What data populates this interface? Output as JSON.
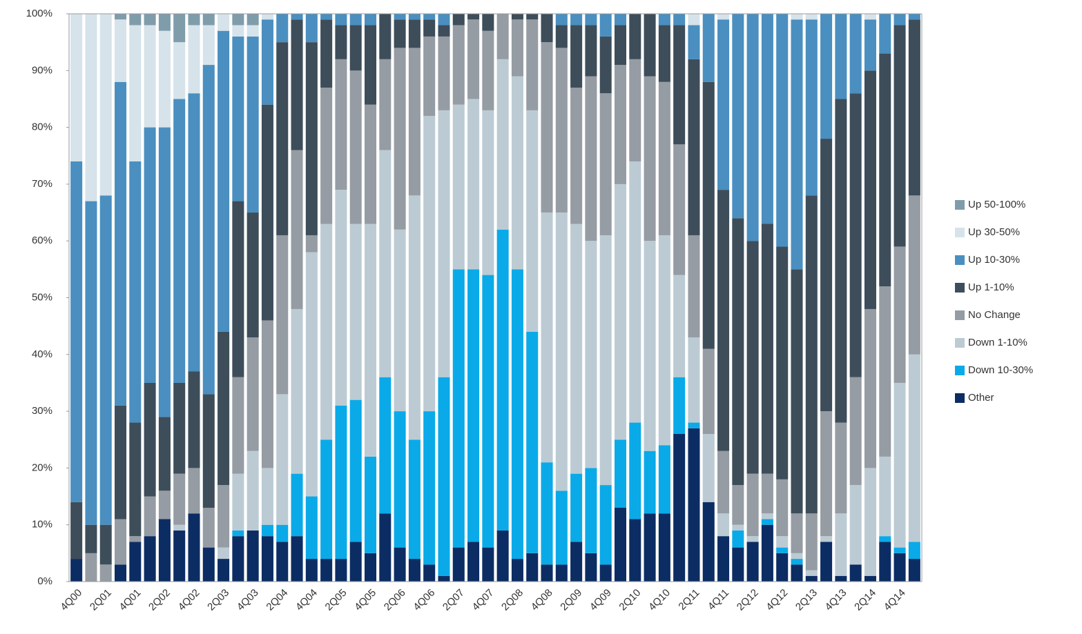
{
  "chart_data": {
    "type": "stacked_bar",
    "categories": [
      "4Q00",
      null,
      "2Q01",
      null,
      "4Q01",
      null,
      "2Q02",
      null,
      "4Q02",
      null,
      "2Q03",
      null,
      "4Q03",
      null,
      "2Q04",
      null,
      "4Q04",
      null,
      "2Q05",
      null,
      "4Q05",
      null,
      "2Q06",
      null,
      "4Q06",
      null,
      "2Q07",
      null,
      "4Q07",
      null,
      "2Q08",
      null,
      "4Q08",
      null,
      "2Q09",
      null,
      "4Q09",
      null,
      "2Q10",
      null,
      "4Q10",
      null,
      "2Q11",
      null,
      "4Q11",
      null,
      "2Q12",
      null,
      "4Q12",
      null,
      "2Q13",
      null,
      "4Q13",
      null,
      "2Q14",
      null,
      "4Q14",
      null
    ],
    "series": [
      {
        "name": "Other",
        "color": "#0c2d63",
        "values": [
          4,
          0,
          0,
          3,
          7,
          8,
          11,
          9,
          12,
          6,
          4,
          8,
          9,
          8,
          7,
          8,
          4,
          4,
          4,
          7,
          5,
          12,
          6,
          4,
          3,
          1,
          6,
          7,
          6,
          9,
          4,
          5,
          3,
          3,
          7,
          5,
          3,
          13,
          11,
          12,
          12,
          26,
          27,
          14,
          8,
          6,
          7,
          10,
          5,
          3,
          1,
          7,
          1,
          3,
          1,
          7,
          5,
          4
        ]
      },
      {
        "name": "Down 10-30%",
        "color": "#0aaae8",
        "values": [
          0,
          0,
          0,
          0,
          0,
          0,
          0,
          0,
          0,
          0,
          0,
          1,
          0,
          2,
          3,
          11,
          11,
          21,
          27,
          25,
          17,
          24,
          24,
          21,
          27,
          35,
          49,
          48,
          48,
          53,
          51,
          39,
          18,
          13,
          12,
          15,
          14,
          12,
          17,
          11,
          12,
          10,
          1,
          0,
          0,
          3,
          0,
          1,
          1,
          1,
          0,
          0,
          0,
          0,
          0,
          1,
          1,
          3
        ]
      },
      {
        "name": "Down 1-10%",
        "color": "#bccbd3",
        "values": [
          0,
          0,
          0,
          0,
          0,
          0,
          0,
          1,
          0,
          0,
          2,
          10,
          14,
          10,
          23,
          29,
          43,
          38,
          38,
          31,
          41,
          40,
          32,
          43,
          52,
          47,
          29,
          30,
          29,
          30,
          34,
          39,
          44,
          49,
          44,
          40,
          44,
          45,
          46,
          37,
          37,
          18,
          15,
          12,
          4,
          1,
          1,
          1,
          2,
          1,
          1,
          1,
          11,
          14,
          19,
          14,
          29,
          33
        ]
      },
      {
        "name": "No Change",
        "color": "#959ca3",
        "values": [
          0,
          5,
          3,
          8,
          1,
          7,
          5,
          9,
          8,
          7,
          11,
          17,
          20,
          26,
          28,
          28,
          3,
          24,
          23,
          27,
          21,
          16,
          32,
          26,
          14,
          13,
          14,
          14,
          14,
          8,
          10,
          16,
          30,
          29,
          24,
          29,
          25,
          21,
          18,
          29,
          27,
          23,
          18,
          15,
          11,
          7,
          11,
          7,
          10,
          7,
          10,
          22,
          16,
          19,
          28,
          30,
          24,
          28
        ]
      },
      {
        "name": "Up 1-10%",
        "color": "#3e4d5a",
        "values": [
          10,
          5,
          7,
          20,
          20,
          20,
          13,
          16,
          17,
          20,
          27,
          31,
          22,
          38,
          34,
          23,
          34,
          12,
          6,
          8,
          14,
          8,
          5,
          5,
          3,
          2,
          2,
          1,
          3,
          0,
          1,
          1,
          5,
          4,
          11,
          9,
          10,
          7,
          8,
          11,
          10,
          21,
          31,
          47,
          46,
          47,
          41,
          44,
          41,
          43,
          56,
          48,
          57,
          50,
          42,
          41,
          39,
          31
        ]
      },
      {
        "name": "Up 10-30%",
        "color": "#4a8fc0",
        "values": [
          60,
          57,
          58,
          57,
          46,
          45,
          51,
          50,
          49,
          58,
          53,
          29,
          31,
          15,
          5,
          1,
          5,
          1,
          2,
          2,
          2,
          0,
          1,
          1,
          1,
          2,
          0,
          0,
          0,
          0,
          0,
          0,
          0,
          2,
          2,
          2,
          4,
          2,
          0,
          0,
          2,
          2,
          6,
          12,
          30,
          36,
          40,
          37,
          41,
          44,
          31,
          22,
          15,
          14,
          9,
          7,
          2,
          1
        ]
      },
      {
        "name": "Up 30-50%",
        "color": "#d6e3ea",
        "values": [
          26,
          33,
          32,
          11,
          24,
          18,
          17,
          10,
          12,
          7,
          3,
          2,
          2,
          1,
          0,
          0,
          0,
          0,
          0,
          0,
          0,
          0,
          0,
          0,
          0,
          0,
          0,
          0,
          0,
          0,
          0,
          0,
          0,
          0,
          0,
          0,
          0,
          0,
          0,
          0,
          0,
          0,
          2,
          0,
          1,
          0,
          0,
          0,
          0,
          1,
          1,
          0,
          0,
          0,
          1,
          0,
          0,
          0
        ]
      },
      {
        "name": "Up 50-100%",
        "color": "#7f9cab",
        "values": [
          0,
          0,
          0,
          1,
          2,
          2,
          3,
          5,
          2,
          2,
          0,
          2,
          2,
          0,
          0,
          0,
          0,
          0,
          0,
          0,
          0,
          0,
          0,
          0,
          0,
          0,
          0,
          0,
          0,
          0,
          0,
          0,
          0,
          0,
          0,
          0,
          0,
          0,
          0,
          0,
          0,
          0,
          0,
          0,
          0,
          0,
          0,
          0,
          0,
          0,
          0,
          0,
          0,
          0,
          0,
          0,
          0,
          0
        ]
      }
    ],
    "ylim": [
      0,
      100
    ],
    "yticks": [
      {
        "value": 0,
        "label": "0%"
      },
      {
        "value": 10,
        "label": "10%"
      },
      {
        "value": 20,
        "label": "20%"
      },
      {
        "value": 30,
        "label": "30%"
      },
      {
        "value": 40,
        "label": "40%"
      },
      {
        "value": 50,
        "label": "50%"
      },
      {
        "value": 60,
        "label": "60%"
      },
      {
        "value": 70,
        "label": "70%"
      },
      {
        "value": 80,
        "label": "80%"
      },
      {
        "value": 90,
        "label": "90%"
      },
      {
        "value": 100,
        "label": "100%"
      }
    ],
    "legend": "right"
  }
}
